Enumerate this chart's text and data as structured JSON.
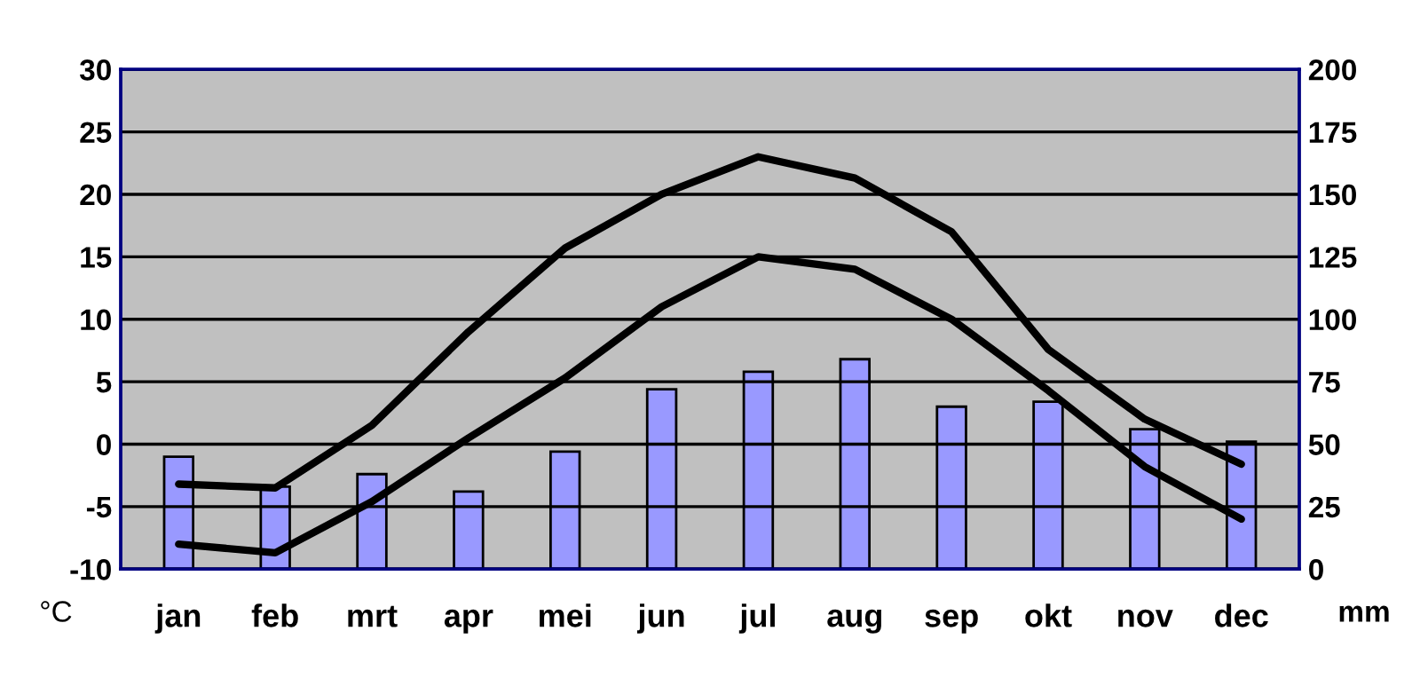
{
  "chart_data": {
    "type": "line",
    "ylabel": "°C",
    "y2label": "mm",
    "categories": [
      "jan",
      "feb",
      "mrt",
      "apr",
      "mei",
      "jun",
      "jul",
      "aug",
      "sep",
      "okt",
      "nov",
      "dec"
    ],
    "series": [
      {
        "type": "bar",
        "axis": "y2",
        "color": "#9999ff",
        "values": [
          45,
          33,
          38,
          31,
          47,
          72,
          79,
          84,
          65,
          67,
          56,
          51
        ]
      },
      {
        "color": "#000000",
        "values": [
          -3.2,
          -3.5,
          1.5,
          9,
          15.7,
          20,
          23,
          21.3,
          17,
          7.6,
          2,
          -1.6
        ]
      },
      {
        "color": "#000000",
        "values": [
          -8,
          -8.7,
          -4.6,
          0.5,
          5.3,
          11,
          15,
          14,
          10,
          4.3,
          -1.8,
          -6
        ]
      }
    ],
    "ylim": [
      -10,
      30
    ],
    "yticks": [
      -10,
      -5,
      0,
      5,
      10,
      15,
      20,
      25,
      30
    ],
    "y2lim": [
      0,
      200
    ],
    "y2ticks": [
      0,
      25,
      50,
      75,
      100,
      125,
      150,
      175,
      200
    ],
    "grid": "y",
    "marker": "none",
    "line_style": "solid"
  }
}
